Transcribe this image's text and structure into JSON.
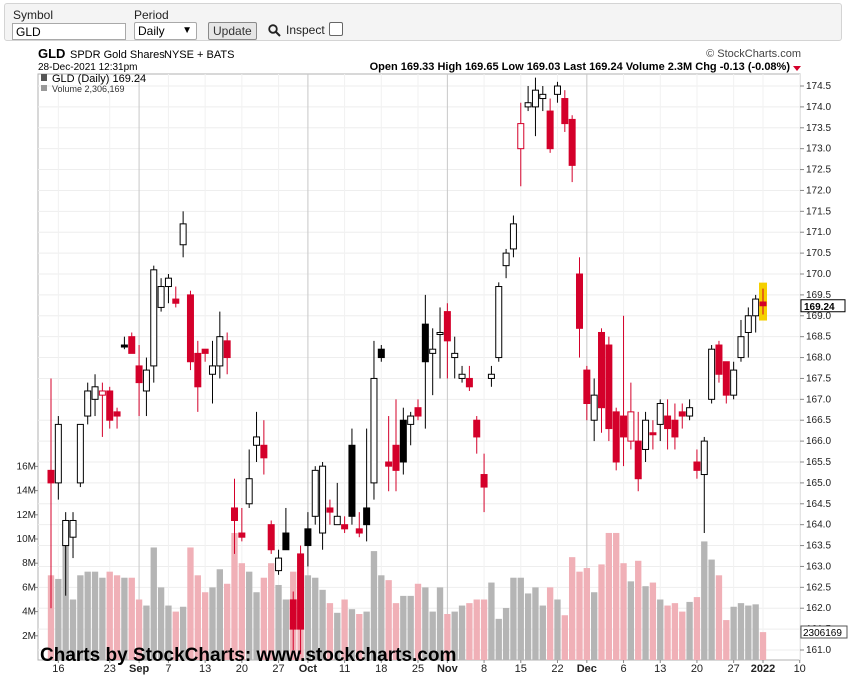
{
  "toolbar": {
    "symbol_label": "Symbol",
    "symbol_value": "GLD",
    "period_label": "Period",
    "period_value": "Daily",
    "update_label": "Update",
    "inspect_label": "Inspect",
    "inspect_checked": false
  },
  "header": {
    "ticker": "GLD",
    "name": "SPDR Gold Shares",
    "exchange": "NYSE + BATS",
    "copyright": "© StockCharts.com",
    "datetime": "28-Dec-2021 12:31pm",
    "quote_text": "Open 169.33  High 169.65  Low 169.03  Last 169.24  Volume 2.3M  Chg -0.13 (-0.08%)"
  },
  "legend": {
    "price_line": "GLD (Daily) 169.24",
    "volume_line": "Volume 2,306,169"
  },
  "chart_data": {
    "type": "candlestick",
    "symbol": "GLD",
    "last_price": 169.24,
    "last_volume": 2306169,
    "last_price_label": "169.24",
    "last_volume_label": "2306169",
    "price_axis": {
      "min": 160.9,
      "max": 174.85,
      "ticks": [
        "174.5",
        "174.0",
        "173.5",
        "173.0",
        "172.5",
        "172.0",
        "171.5",
        "171.0",
        "170.5",
        "170.0",
        "169.5",
        "169.0",
        "168.5",
        "168.0",
        "167.5",
        "167.0",
        "166.5",
        "166.0",
        "165.5",
        "165.0",
        "164.5",
        "164.0",
        "163.5",
        "163.0",
        "162.5",
        "162.0",
        "161.5",
        "161.0"
      ]
    },
    "volume_axis": {
      "max": 17000000,
      "ticks": [
        {
          "value": 16000000,
          "label": "16M"
        },
        {
          "value": 14000000,
          "label": "14M"
        },
        {
          "value": 12000000,
          "label": "12M"
        },
        {
          "value": 10000000,
          "label": "10M"
        },
        {
          "value": 8000000,
          "label": "8M"
        },
        {
          "value": 6000000,
          "label": "6M"
        },
        {
          "value": 4000000,
          "label": "4M"
        },
        {
          "value": 2000000,
          "label": "2M"
        }
      ]
    },
    "x_labels": [
      "16",
      "23",
      "Sep",
      "7",
      "13",
      "20",
      "27",
      "Oct",
      "11",
      "18",
      "25",
      "Nov",
      "8",
      "15",
      "22",
      "Dec",
      "6",
      "13",
      "20",
      "27",
      "2022",
      "10"
    ],
    "bold_x_labels": [
      "Sep",
      "Oct",
      "Nov",
      "Dec",
      "2022"
    ],
    "month_gridline_dates": [
      "Sep",
      "Oct",
      "Nov",
      "Dec"
    ],
    "grid": true,
    "colors": {
      "up_candle": "#ffffff",
      "down_candle": "#d4002a",
      "black_candle": "#000000",
      "up_volume": "#b5b5b5",
      "down_volume": "#f0b0b7",
      "highlight": "#f5d000"
    },
    "candles": [
      {
        "o": 165.3,
        "h": 167.5,
        "l": 162.0,
        "c": 165.0,
        "v": 7000000,
        "d": 1
      },
      {
        "o": 165.0,
        "h": 166.6,
        "l": 164.6,
        "c": 166.4,
        "v": 6700000,
        "d": 0
      },
      {
        "o": 163.5,
        "h": 164.3,
        "l": 162.3,
        "c": 164.1,
        "v": 11500000,
        "d": 0
      },
      {
        "o": 164.1,
        "h": 164.3,
        "l": 163.2,
        "c": 163.7,
        "v": 5000000,
        "d": 0
      },
      {
        "o": 165.0,
        "h": 166.4,
        "l": 164.9,
        "c": 166.4,
        "v": 7000000,
        "d": 0
      },
      {
        "o": 166.6,
        "h": 167.4,
        "l": 166.4,
        "c": 167.2,
        "v": 7300000,
        "d": 0
      },
      {
        "o": 167.0,
        "h": 167.6,
        "l": 166.6,
        "c": 167.3,
        "v": 7300000,
        "d": 0
      },
      {
        "o": 167.2,
        "h": 167.4,
        "l": 166.1,
        "c": 167.1,
        "v": 6800000,
        "d": 3
      },
      {
        "o": 167.2,
        "h": 167.3,
        "l": 166.3,
        "c": 166.5,
        "v": 7300000,
        "d": 1
      },
      {
        "o": 166.7,
        "h": 166.8,
        "l": 166.3,
        "c": 166.6,
        "v": 7000000,
        "d": 1
      },
      {
        "o": 168.3,
        "h": 168.5,
        "l": 168.2,
        "c": 168.3,
        "v": 6800000,
        "d": 2
      },
      {
        "o": 168.5,
        "h": 168.6,
        "l": 168.1,
        "c": 168.1,
        "v": 6800000,
        "d": 1
      },
      {
        "o": 167.8,
        "h": 168.3,
        "l": 166.6,
        "c": 167.4,
        "v": 5000000,
        "d": 1
      },
      {
        "o": 167.2,
        "h": 168.0,
        "l": 166.6,
        "c": 167.7,
        "v": 4500000,
        "d": 0
      },
      {
        "o": 167.8,
        "h": 170.2,
        "l": 167.4,
        "c": 170.1,
        "v": 9300000,
        "d": 0
      },
      {
        "o": 169.2,
        "h": 169.9,
        "l": 169.1,
        "c": 169.7,
        "v": 6000000,
        "d": 0
      },
      {
        "o": 169.7,
        "h": 170.0,
        "l": 169.3,
        "c": 169.9,
        "v": 4500000,
        "d": 0
      },
      {
        "o": 169.4,
        "h": 169.7,
        "l": 169.2,
        "c": 169.3,
        "v": 4000000,
        "d": 1
      },
      {
        "o": 170.7,
        "h": 171.5,
        "l": 170.4,
        "c": 171.2,
        "v": 4400000,
        "d": 0
      },
      {
        "o": 169.5,
        "h": 169.6,
        "l": 167.7,
        "c": 167.9,
        "v": 9300000,
        "d": 1
      },
      {
        "o": 168.1,
        "h": 168.4,
        "l": 166.7,
        "c": 167.3,
        "v": 7000000,
        "d": 1
      },
      {
        "o": 168.1,
        "h": 168.2,
        "l": 167.9,
        "c": 168.2,
        "v": 5600000,
        "d": 1
      },
      {
        "o": 167.6,
        "h": 168.4,
        "l": 166.9,
        "c": 167.8,
        "v": 6000000,
        "d": 0
      },
      {
        "o": 167.8,
        "h": 169.1,
        "l": 167.5,
        "c": 168.5,
        "v": 7500000,
        "d": 0
      },
      {
        "o": 168.4,
        "h": 168.6,
        "l": 167.6,
        "c": 168.0,
        "v": 6300000,
        "d": 1
      },
      {
        "o": 164.4,
        "h": 165.1,
        "l": 163.3,
        "c": 164.1,
        "v": 10500000,
        "d": 1
      },
      {
        "o": 163.8,
        "h": 164.4,
        "l": 163.6,
        "c": 163.7,
        "v": 8000000,
        "d": 1
      },
      {
        "o": 165.1,
        "h": 165.8,
        "l": 164.4,
        "c": 164.5,
        "v": 7300000,
        "d": 0
      },
      {
        "o": 165.9,
        "h": 166.7,
        "l": 165.5,
        "c": 166.1,
        "v": 5600000,
        "d": 0
      },
      {
        "o": 165.9,
        "h": 166.5,
        "l": 165.2,
        "c": 165.6,
        "v": 6800000,
        "d": 1
      },
      {
        "o": 164.0,
        "h": 164.1,
        "l": 163.3,
        "c": 163.4,
        "v": 8000000,
        "d": 1
      },
      {
        "o": 163.2,
        "h": 163.4,
        "l": 162.8,
        "c": 162.9,
        "v": 6200000,
        "d": 0
      },
      {
        "o": 163.8,
        "h": 164.4,
        "l": 163.4,
        "c": 163.4,
        "v": 5000000,
        "d": 2
      },
      {
        "o": 162.2,
        "h": 162.4,
        "l": 161.0,
        "c": 161.5,
        "v": 7300000,
        "d": 1
      },
      {
        "o": 161.5,
        "h": 163.5,
        "l": 160.9,
        "c": 163.3,
        "v": 8300000,
        "d": 1
      },
      {
        "o": 163.5,
        "h": 164.3,
        "l": 163.0,
        "c": 163.9,
        "v": 7000000,
        "d": 2
      },
      {
        "o": 164.2,
        "h": 165.4,
        "l": 164.0,
        "c": 165.3,
        "v": 6800000,
        "d": 0
      },
      {
        "o": 165.4,
        "h": 165.5,
        "l": 163.4,
        "c": 163.8,
        "v": 5800000,
        "d": 0
      },
      {
        "o": 164.3,
        "h": 164.6,
        "l": 164.0,
        "c": 164.4,
        "v": 4700000,
        "d": 1
      },
      {
        "o": 164.2,
        "h": 165.0,
        "l": 164.0,
        "c": 164.0,
        "v": 3900000,
        "d": 0
      },
      {
        "o": 163.9,
        "h": 164.2,
        "l": 163.8,
        "c": 164.0,
        "v": 5000000,
        "d": 1
      },
      {
        "o": 164.2,
        "h": 166.3,
        "l": 164.0,
        "c": 165.9,
        "v": 4200000,
        "d": 2
      },
      {
        "o": 163.9,
        "h": 164.3,
        "l": 163.7,
        "c": 163.8,
        "v": 3800000,
        "d": 1
      },
      {
        "o": 164.0,
        "h": 166.3,
        "l": 163.6,
        "c": 164.4,
        "v": 4000000,
        "d": 2
      },
      {
        "o": 165.0,
        "h": 168.4,
        "l": 164.6,
        "c": 167.5,
        "v": 9000000,
        "d": 0
      },
      {
        "o": 168.2,
        "h": 168.3,
        "l": 167.9,
        "c": 168.0,
        "v": 7000000,
        "d": 2
      },
      {
        "o": 165.5,
        "h": 166.6,
        "l": 164.8,
        "c": 165.4,
        "v": 6600000,
        "d": 1
      },
      {
        "o": 165.3,
        "h": 167.0,
        "l": 164.8,
        "c": 165.9,
        "v": 4700000,
        "d": 1
      },
      {
        "o": 166.5,
        "h": 166.8,
        "l": 165.2,
        "c": 165.5,
        "v": 5300000,
        "d": 2
      },
      {
        "o": 166.6,
        "h": 166.7,
        "l": 165.9,
        "c": 166.4,
        "v": 5300000,
        "d": 0
      },
      {
        "o": 166.6,
        "h": 167.0,
        "l": 166.5,
        "c": 166.8,
        "v": 6300000,
        "d": 1
      },
      {
        "o": 167.9,
        "h": 169.5,
        "l": 166.3,
        "c": 168.8,
        "v": 6000000,
        "d": 2
      },
      {
        "o": 168.2,
        "h": 168.7,
        "l": 167.1,
        "c": 168.1,
        "v": 4000000,
        "d": 0
      },
      {
        "o": 168.6,
        "h": 169.2,
        "l": 167.5,
        "c": 168.6,
        "v": 6000000,
        "d": 0
      },
      {
        "o": 169.1,
        "h": 169.3,
        "l": 167.5,
        "c": 168.4,
        "v": 3800000,
        "d": 1
      },
      {
        "o": 168.0,
        "h": 168.5,
        "l": 167.5,
        "c": 168.1,
        "v": 4000000,
        "d": 0
      },
      {
        "o": 167.6,
        "h": 167.8,
        "l": 167.4,
        "c": 167.5,
        "v": 4500000,
        "d": 0
      },
      {
        "o": 167.5,
        "h": 167.8,
        "l": 167.2,
        "c": 167.3,
        "v": 4700000,
        "d": 1
      },
      {
        "o": 166.5,
        "h": 166.6,
        "l": 165.7,
        "c": 166.1,
        "v": 5000000,
        "d": 1
      },
      {
        "o": 165.2,
        "h": 165.7,
        "l": 164.3,
        "c": 164.9,
        "v": 5000000,
        "d": 1
      },
      {
        "o": 167.6,
        "h": 167.8,
        "l": 167.3,
        "c": 167.5,
        "v": 6400000,
        "d": 0
      },
      {
        "o": 168.0,
        "h": 169.8,
        "l": 167.9,
        "c": 169.7,
        "v": 3400000,
        "d": 0
      },
      {
        "o": 170.2,
        "h": 170.6,
        "l": 169.9,
        "c": 170.5,
        "v": 4300000,
        "d": 0
      },
      {
        "o": 170.6,
        "h": 171.4,
        "l": 170.4,
        "c": 171.2,
        "v": 6800000,
        "d": 0
      },
      {
        "o": 173.6,
        "h": 174.1,
        "l": 172.1,
        "c": 173.0,
        "v": 6800000,
        "d": 3
      },
      {
        "o": 174.0,
        "h": 174.5,
        "l": 173.9,
        "c": 174.1,
        "v": 5500000,
        "d": 0
      },
      {
        "o": 174.0,
        "h": 174.7,
        "l": 173.3,
        "c": 174.4,
        "v": 6000000,
        "d": 0
      },
      {
        "o": 174.2,
        "h": 174.5,
        "l": 173.9,
        "c": 174.3,
        "v": 4500000,
        "d": 0
      },
      {
        "o": 173.9,
        "h": 174.2,
        "l": 172.9,
        "c": 173.0,
        "v": 6000000,
        "d": 1
      },
      {
        "o": 174.3,
        "h": 174.6,
        "l": 174.1,
        "c": 174.5,
        "v": 5000000,
        "d": 0
      },
      {
        "o": 174.2,
        "h": 174.4,
        "l": 173.4,
        "c": 173.6,
        "v": 3700000,
        "d": 1
      },
      {
        "o": 173.7,
        "h": 173.8,
        "l": 172.2,
        "c": 172.6,
        "v": 8500000,
        "d": 1
      },
      {
        "o": 170.0,
        "h": 170.4,
        "l": 168.0,
        "c": 168.7,
        "v": 7300000,
        "d": 1
      },
      {
        "o": 167.7,
        "h": 167.8,
        "l": 166.5,
        "c": 166.9,
        "v": 7600000,
        "d": 1
      },
      {
        "o": 166.5,
        "h": 167.5,
        "l": 166.0,
        "c": 167.1,
        "v": 5600000,
        "d": 0
      },
      {
        "o": 168.6,
        "h": 168.7,
        "l": 166.2,
        "c": 166.8,
        "v": 7900000,
        "d": 1
      },
      {
        "o": 168.3,
        "h": 168.5,
        "l": 166.0,
        "c": 166.3,
        "v": 10500000,
        "d": 1
      },
      {
        "o": 166.7,
        "h": 166.8,
        "l": 165.3,
        "c": 165.5,
        "v": 10500000,
        "d": 1
      },
      {
        "o": 166.1,
        "h": 169.0,
        "l": 165.4,
        "c": 166.6,
        "v": 8000000,
        "d": 1
      },
      {
        "o": 166.7,
        "h": 167.4,
        "l": 165.8,
        "c": 166.0,
        "v": 6500000,
        "d": 3
      },
      {
        "o": 166.0,
        "h": 166.7,
        "l": 164.8,
        "c": 165.1,
        "v": 8200000,
        "d": 1
      },
      {
        "o": 165.8,
        "h": 166.7,
        "l": 165.5,
        "c": 166.5,
        "v": 6100000,
        "d": 0
      },
      {
        "o": 166.2,
        "h": 166.5,
        "l": 165.8,
        "c": 166.2,
        "v": 6400000,
        "d": 1
      },
      {
        "o": 166.4,
        "h": 167.0,
        "l": 166.0,
        "c": 166.9,
        "v": 5000000,
        "d": 0
      },
      {
        "o": 166.6,
        "h": 167.0,
        "l": 165.8,
        "c": 166.3,
        "v": 4500000,
        "d": 1
      },
      {
        "o": 166.5,
        "h": 166.9,
        "l": 165.8,
        "c": 166.1,
        "v": 4700000,
        "d": 1
      },
      {
        "o": 166.7,
        "h": 166.9,
        "l": 166.3,
        "c": 166.6,
        "v": 4000000,
        "d": 1
      },
      {
        "o": 166.6,
        "h": 167.0,
        "l": 166.5,
        "c": 166.8,
        "v": 4800000,
        "d": 0
      },
      {
        "o": 165.5,
        "h": 165.8,
        "l": 165.1,
        "c": 165.3,
        "v": 5200000,
        "d": 1
      },
      {
        "o": 165.2,
        "h": 166.1,
        "l": 163.8,
        "c": 166.0,
        "v": 9800000,
        "d": 0
      },
      {
        "o": 167.0,
        "h": 168.3,
        "l": 166.9,
        "c": 168.2,
        "v": 8300000,
        "d": 0
      },
      {
        "o": 168.3,
        "h": 168.4,
        "l": 167.4,
        "c": 167.6,
        "v": 7000000,
        "d": 1
      },
      {
        "o": 167.9,
        "h": 167.9,
        "l": 166.9,
        "c": 167.1,
        "v": 3300000,
        "d": 1
      },
      {
        "o": 167.1,
        "h": 167.9,
        "l": 167.0,
        "c": 167.7,
        "v": 4400000,
        "d": 0
      },
      {
        "o": 168.0,
        "h": 168.9,
        "l": 167.9,
        "c": 168.5,
        "v": 4700000,
        "d": 0
      },
      {
        "o": 168.6,
        "h": 169.2,
        "l": 168.0,
        "c": 169.0,
        "v": 4500000,
        "d": 0
      },
      {
        "o": 169.0,
        "h": 169.5,
        "l": 168.6,
        "c": 169.4,
        "v": 4600000,
        "d": 0
      },
      {
        "o": 169.33,
        "h": 169.65,
        "l": 169.03,
        "c": 169.24,
        "v": 2306169,
        "d": 4
      }
    ]
  }
}
